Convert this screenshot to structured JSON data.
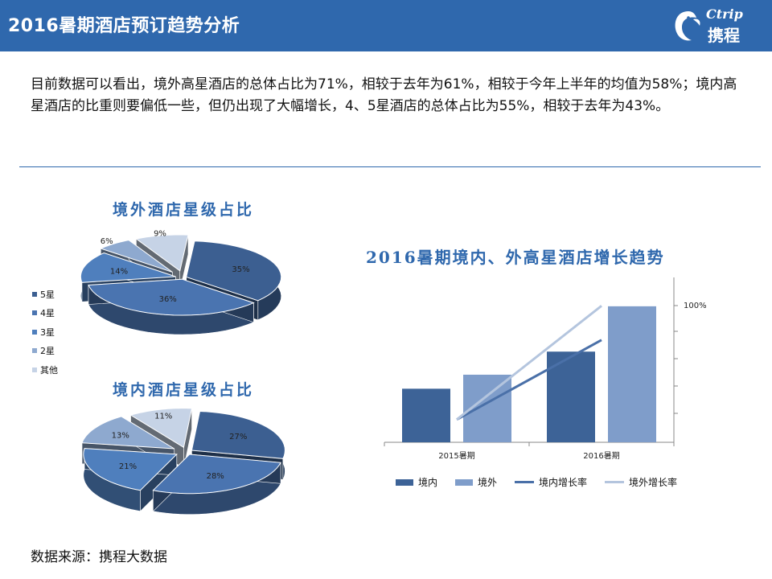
{
  "header": {
    "title": "2016暑期酒店预订趋势分析",
    "logo_en": "Ctrip",
    "logo_cn": "携程"
  },
  "intro": {
    "text": "目前数据可以看出，境外高星酒店的总体占比为71%，相较于去年为61%，相较于今年上半年的均值为58%；境内高星酒店的比重则要偏低一些，但仍出现了大幅增长，4、5星酒店的总体占比为55%，相较于去年为43%。"
  },
  "source": "数据来源：携程大数据",
  "colors": {
    "header_bg": "#2f68ad",
    "5star": "#3c5f91",
    "4star": "#4a74b0",
    "3star": "#4f7fbd",
    "2star": "#8ea9cf",
    "other": "#c6d3e6",
    "domestic_bar": "#3d6397",
    "overseas_bar": "#7f9dca",
    "domestic_line": "#4a70a8",
    "overseas_line": "#b4c5de"
  },
  "chart_data": [
    {
      "type": "pie",
      "title": "境外酒店星级占比",
      "labels": [
        "5星",
        "4星",
        "3星",
        "2星",
        "其他"
      ],
      "values": [
        35,
        36,
        14,
        6,
        9
      ],
      "data_labels": [
        "35%",
        "36%",
        "14%",
        "6%",
        "9%"
      ],
      "legend": "left"
    },
    {
      "type": "pie",
      "title": "境内酒店星级占比",
      "labels": [
        "5星",
        "4星",
        "3星",
        "2星",
        "其他"
      ],
      "values": [
        27,
        28,
        21,
        13,
        11
      ],
      "data_labels": [
        "27%",
        "28%",
        "21%",
        "13%",
        "11%"
      ]
    },
    {
      "type": "bar",
      "title": "2016暑期境内、外高星酒店增长趋势",
      "categories": [
        "2015暑期",
        "2016暑期"
      ],
      "series": [
        {
          "name": "境内",
          "kind": "bar",
          "values": [
            65,
            110
          ]
        },
        {
          "name": "境外",
          "kind": "bar",
          "values": [
            82,
            165
          ]
        },
        {
          "name": "境内增长率",
          "kind": "line",
          "values": [
            0,
            70
          ]
        },
        {
          "name": "境外增长率",
          "kind": "line",
          "values": [
            0,
            100
          ]
        }
      ],
      "y2_tick_label": "100%",
      "ylim": [
        0,
        200
      ],
      "y2lim": [
        -20,
        125
      ],
      "legend": "bottom"
    }
  ]
}
